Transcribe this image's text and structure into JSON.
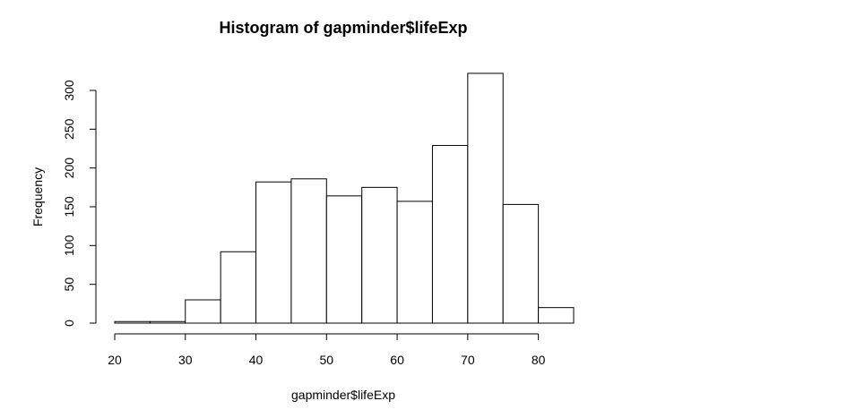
{
  "chart_data": {
    "type": "bar",
    "title": "Histogram of gapminder$lifeExp",
    "xlabel": "gapminder$lifeExp",
    "ylabel": "Frequency",
    "bin_edges": [
      20,
      25,
      30,
      35,
      40,
      45,
      50,
      55,
      60,
      65,
      70,
      75,
      80,
      85
    ],
    "values": [
      2,
      2,
      30,
      92,
      182,
      186,
      164,
      175,
      157,
      229,
      322,
      153,
      20
    ],
    "xlim": [
      20,
      85
    ],
    "ylim": [
      0,
      300
    ],
    "x_ticks": [
      20,
      30,
      40,
      50,
      60,
      70,
      80
    ],
    "y_ticks": [
      0,
      50,
      100,
      150,
      200,
      250,
      300
    ],
    "grid": false,
    "legend": "none"
  }
}
